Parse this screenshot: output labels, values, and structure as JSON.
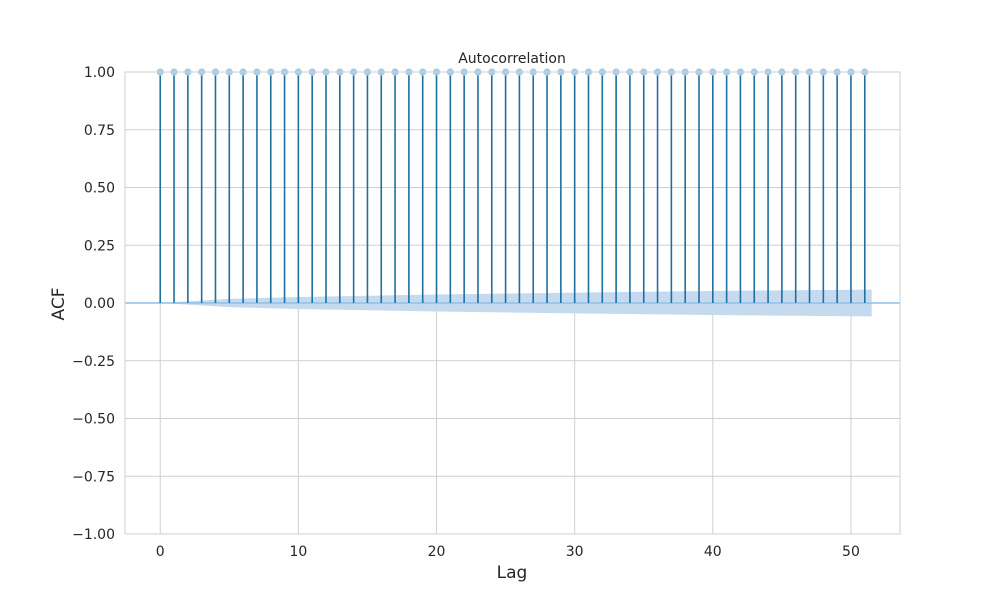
{
  "chart_data": {
    "type": "stem",
    "title": "Autocorrelation",
    "xlabel": "Lag",
    "ylabel": "ACF",
    "xlim": [
      -2.55,
      53.55
    ],
    "ylim": [
      -1.0,
      1.0
    ],
    "xticks": [
      0,
      10,
      20,
      30,
      40,
      50
    ],
    "yticks": [
      -1.0,
      -0.75,
      -0.5,
      -0.25,
      0.0,
      0.25,
      0.5,
      0.75,
      1.0
    ],
    "ytick_labels": [
      "−1.00",
      "−0.75",
      "−0.50",
      "−0.25",
      "0.00",
      "0.25",
      "0.50",
      "0.75",
      "1.00"
    ],
    "xtick_labels": [
      "0",
      "10",
      "20",
      "30",
      "40",
      "50"
    ],
    "grid": true,
    "lags": [
      0,
      1,
      2,
      3,
      4,
      5,
      6,
      7,
      8,
      9,
      10,
      11,
      12,
      13,
      14,
      15,
      16,
      17,
      18,
      19,
      20,
      21,
      22,
      23,
      24,
      25,
      26,
      27,
      28,
      29,
      30,
      31,
      32,
      33,
      34,
      35,
      36,
      37,
      38,
      39,
      40,
      41,
      42,
      43,
      44,
      45,
      46,
      47,
      48,
      49,
      50,
      51
    ],
    "values": [
      1.0,
      1.0,
      1.0,
      1.0,
      1.0,
      1.0,
      1.0,
      1.0,
      1.0,
      1.0,
      1.0,
      1.0,
      1.0,
      1.0,
      1.0,
      1.0,
      1.0,
      1.0,
      1.0,
      1.0,
      1.0,
      1.0,
      1.0,
      1.0,
      1.0,
      1.0,
      1.0,
      1.0,
      1.0,
      1.0,
      1.0,
      1.0,
      1.0,
      1.0,
      1.0,
      1.0,
      1.0,
      1.0,
      1.0,
      1.0,
      1.0,
      1.0,
      1.0,
      1.0,
      1.0,
      1.0,
      1.0,
      1.0,
      1.0,
      1.0,
      1.0,
      1.0
    ],
    "confidence_band": {
      "lags": [
        0,
        5,
        10,
        20,
        30,
        40,
        51.5
      ],
      "upper": [
        0.0,
        0.018,
        0.026,
        0.037,
        0.045,
        0.052,
        0.058
      ],
      "lower": [
        0.0,
        -0.018,
        -0.026,
        -0.037,
        -0.045,
        -0.052,
        -0.058
      ]
    },
    "colors": {
      "stem": "#1f6f9f",
      "marker": "#a8cbe8",
      "band": "#c2d8ee",
      "zero_line": "#8fbfe8",
      "grid": "#cfcfcf",
      "frame": "#cfcfcf"
    }
  }
}
